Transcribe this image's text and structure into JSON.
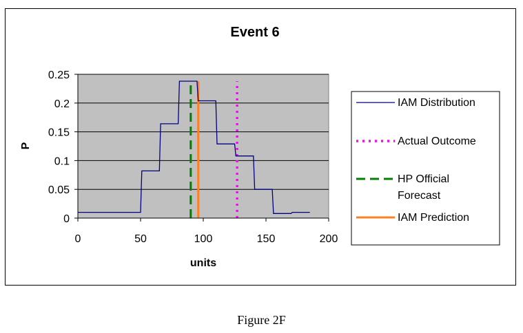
{
  "chart_data": {
    "type": "line",
    "title": "Event 6",
    "xlabel": "units",
    "ylabel": "P",
    "xlim": [
      0,
      200
    ],
    "ylim": [
      0,
      0.25
    ],
    "x_ticks": [
      0,
      50,
      100,
      150,
      200
    ],
    "y_ticks": [
      0,
      0.05,
      0.1,
      0.15,
      0.2,
      0.25
    ],
    "x_tick_labels": [
      "0",
      "50",
      "100",
      "150",
      "200"
    ],
    "y_tick_labels": [
      "0",
      "0.05",
      "0.1",
      "0.15",
      "0.2",
      "0.25"
    ],
    "grid": "horizontal",
    "legend_position": "right",
    "plot_background": "#c0c0c0",
    "series": [
      {
        "name": "IAM Distribution",
        "style": "solid",
        "color": "#000080",
        "x": [
          0,
          50,
          51,
          65,
          66,
          80,
          81,
          95,
          96,
          110,
          111,
          125,
          126,
          140,
          141,
          155,
          156,
          170,
          171,
          185
        ],
        "y": [
          0.01,
          0.01,
          0.082,
          0.082,
          0.164,
          0.164,
          0.238,
          0.238,
          0.204,
          0.204,
          0.129,
          0.129,
          0.108,
          0.108,
          0.05,
          0.05,
          0.008,
          0.008,
          0.01,
          0.01
        ]
      },
      {
        "name": "Actual Outcome",
        "style": "dotted",
        "color": "#ff00ff",
        "x": [
          127,
          127
        ],
        "y": [
          0,
          0.238
        ]
      },
      {
        "name": "HP Official Forecast",
        "style": "dashed",
        "color": "#008000",
        "x": [
          90,
          90
        ],
        "y": [
          0,
          0.238
        ]
      },
      {
        "name": "IAM Prediction",
        "style": "solid",
        "color": "#ff8020",
        "x": [
          96,
          96
        ],
        "y": [
          0,
          0.238
        ]
      }
    ],
    "legend": {
      "items": [
        {
          "label_lines": [
            "IAM Distribution"
          ],
          "style": "solid",
          "color": "#000080"
        },
        {
          "label_lines": [
            "Actual Outcome"
          ],
          "style": "dotted",
          "color": "#ff00ff"
        },
        {
          "label_lines": [
            "HP Official",
            "Forecast"
          ],
          "style": "dashed",
          "color": "#008000"
        },
        {
          "label_lines": [
            "IAM Prediction"
          ],
          "style": "solid",
          "color": "#ff8020"
        }
      ]
    }
  },
  "caption": "Figure 2F"
}
